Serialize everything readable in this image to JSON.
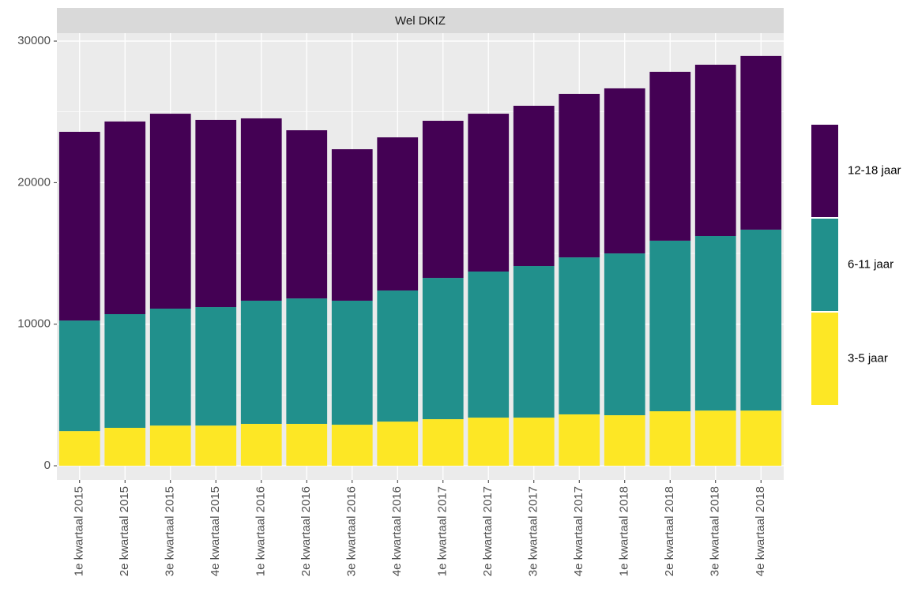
{
  "chart_data": {
    "type": "bar",
    "stacked": true,
    "facet_label": "Wel DKIZ",
    "categories": [
      "1e kwartaal 2015",
      "2e kwartaal 2015",
      "3e kwartaal 2015",
      "4e kwartaal 2015",
      "1e kwartaal 2016",
      "2e kwartaal 2016",
      "3e kwartaal 2016",
      "4e kwartaal 2016",
      "1e kwartaal 2017",
      "2e kwartaal 2017",
      "3e kwartaal 2017",
      "4e kwartaal 2017",
      "1e kwartaal 2018",
      "2e kwartaal 2018",
      "3e kwartaal 2018",
      "4e kwartaal 2018"
    ],
    "series": [
      {
        "name": "3-5 jaar",
        "color": "#fde725",
        "values": [
          2450,
          2680,
          2840,
          2840,
          2960,
          2960,
          2900,
          3120,
          3290,
          3400,
          3400,
          3630,
          3570,
          3850,
          3900,
          3900
        ]
      },
      {
        "name": "6-11 jaar",
        "color": "#21908c",
        "values": [
          7810,
          8030,
          8260,
          8370,
          8700,
          8860,
          8760,
          9260,
          9980,
          10320,
          10710,
          11090,
          11430,
          12050,
          12330,
          12780
        ]
      },
      {
        "name": "12-18 jaar",
        "color": "#440154",
        "values": [
          13330,
          13610,
          13770,
          13220,
          12880,
          11880,
          10700,
          10820,
          11100,
          11150,
          11320,
          11550,
          11660,
          11930,
          12100,
          12270
        ]
      }
    ],
    "ylim": [
      -1000,
      30560
    ],
    "yticks": [
      0,
      10000,
      20000,
      30000
    ],
    "grid": true
  }
}
